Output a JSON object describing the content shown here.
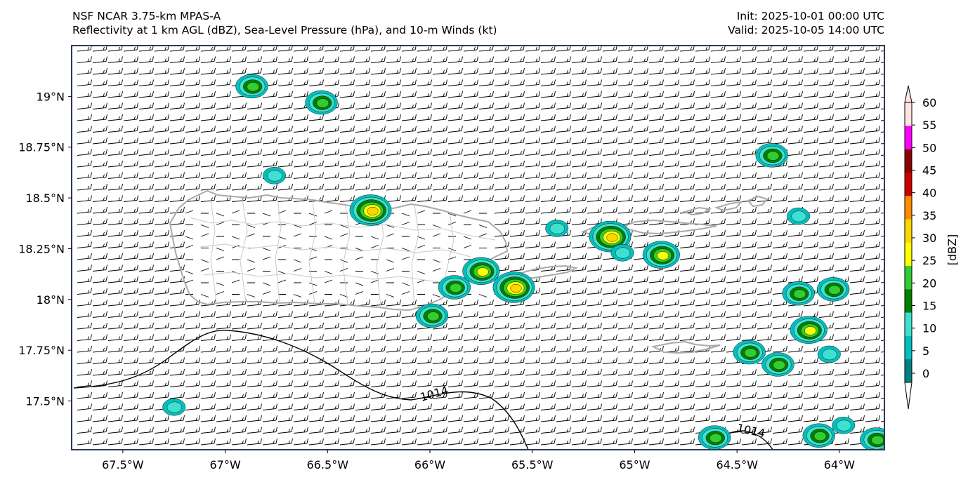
{
  "header": {
    "model_line": "NSF NCAR 3.75-km MPAS-A",
    "fields_line": "Reflectivity at 1 km AGL (dBZ), Sea-Level Pressure (hPa), and 10-m Winds (kt)",
    "init_line": "Init: 2025-10-01 00:00 UTC",
    "valid_line": "Valid: 2025-10-05 14:00 UTC"
  },
  "map": {
    "lon_range": [
      -67.75,
      -63.78
    ],
    "lat_range": [
      17.26,
      19.25
    ],
    "lon_ticks": [
      {
        "value": -67.5,
        "label": "67.5°W"
      },
      {
        "value": -67.0,
        "label": "67°W"
      },
      {
        "value": -66.5,
        "label": "66.5°W"
      },
      {
        "value": -66.0,
        "label": "66°W"
      },
      {
        "value": -65.5,
        "label": "65.5°W"
      },
      {
        "value": -65.0,
        "label": "65°W"
      },
      {
        "value": -64.5,
        "label": "64.5°W"
      },
      {
        "value": -64.0,
        "label": "64°W"
      }
    ],
    "lat_ticks": [
      {
        "value": 19.0,
        "label": "19°N"
      },
      {
        "value": 18.75,
        "label": "18.75°N"
      },
      {
        "value": 18.5,
        "label": "18.5°N"
      },
      {
        "value": 18.25,
        "label": "18.25°N"
      },
      {
        "value": 18.0,
        "label": "18°N"
      },
      {
        "value": 17.75,
        "label": "17.75°N"
      },
      {
        "value": 17.5,
        "label": "17.5°N"
      }
    ],
    "isobar_label": "1014",
    "colors": {
      "coast": "#a9a9a9",
      "municipal": "#c8c8c8",
      "isobar": "#000000",
      "barb": "#000000"
    }
  },
  "colorbar": {
    "label": "[dBZ]",
    "ticks": [
      "0",
      "5",
      "10",
      "15",
      "20",
      "25",
      "30",
      "35",
      "40",
      "45",
      "50",
      "55",
      "60"
    ],
    "colors": [
      "#008080",
      "#00c0c0",
      "#40e0d0",
      "#008000",
      "#32cd32",
      "#ffff00",
      "#ffd700",
      "#ff8c00",
      "#cc0000",
      "#8b0000",
      "#ff00ff",
      "#ffe4e1"
    ]
  },
  "storm_cells": [
    {
      "lon": -66.87,
      "lat": 19.05,
      "max_dbz": 20
    },
    {
      "lon": -66.53,
      "lat": 18.97,
      "max_dbz": 20
    },
    {
      "lon": -66.76,
      "lat": 18.61,
      "max_dbz": 10
    },
    {
      "lon": -66.29,
      "lat": 18.44,
      "max_dbz": 30
    },
    {
      "lon": -65.75,
      "lat": 18.14,
      "max_dbz": 25
    },
    {
      "lon": -65.88,
      "lat": 18.06,
      "max_dbz": 20
    },
    {
      "lon": -65.59,
      "lat": 18.06,
      "max_dbz": 30
    },
    {
      "lon": -65.99,
      "lat": 17.92,
      "max_dbz": 20
    },
    {
      "lon": -65.12,
      "lat": 18.31,
      "max_dbz": 30
    },
    {
      "lon": -64.87,
      "lat": 18.22,
      "max_dbz": 25
    },
    {
      "lon": -65.06,
      "lat": 18.23,
      "max_dbz": 10
    },
    {
      "lon": -65.38,
      "lat": 18.35,
      "max_dbz": 10
    },
    {
      "lon": -64.33,
      "lat": 18.71,
      "max_dbz": 20
    },
    {
      "lon": -64.2,
      "lat": 18.41,
      "max_dbz": 10
    },
    {
      "lon": -64.2,
      "lat": 18.03,
      "max_dbz": 20
    },
    {
      "lon": -64.03,
      "lat": 18.05,
      "max_dbz": 20
    },
    {
      "lon": -64.15,
      "lat": 17.85,
      "max_dbz": 25
    },
    {
      "lon": -64.44,
      "lat": 17.74,
      "max_dbz": 20
    },
    {
      "lon": -64.3,
      "lat": 17.68,
      "max_dbz": 20
    },
    {
      "lon": -64.05,
      "lat": 17.73,
      "max_dbz": 10
    },
    {
      "lon": -67.25,
      "lat": 17.47,
      "max_dbz": 10
    },
    {
      "lon": -64.61,
      "lat": 17.32,
      "max_dbz": 20
    },
    {
      "lon": -64.1,
      "lat": 17.33,
      "max_dbz": 20
    },
    {
      "lon": -63.98,
      "lat": 17.38,
      "max_dbz": 10
    },
    {
      "lon": -63.82,
      "lat": 17.31,
      "max_dbz": 20
    }
  ]
}
